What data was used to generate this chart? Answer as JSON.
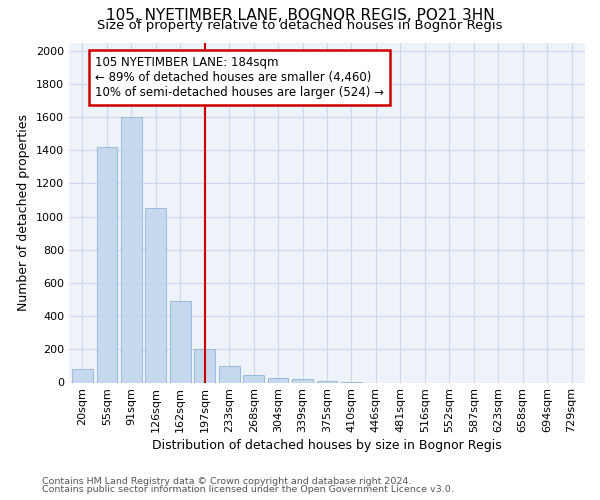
{
  "title": "105, NYETIMBER LANE, BOGNOR REGIS, PO21 3HN",
  "subtitle": "Size of property relative to detached houses in Bognor Regis",
  "xlabel": "Distribution of detached houses by size in Bognor Regis",
  "ylabel": "Number of detached properties",
  "footnote1": "Contains HM Land Registry data © Crown copyright and database right 2024.",
  "footnote2": "Contains public sector information licensed under the Open Government Licence v3.0.",
  "categories": [
    "20sqm",
    "55sqm",
    "91sqm",
    "126sqm",
    "162sqm",
    "197sqm",
    "233sqm",
    "268sqm",
    "304sqm",
    "339sqm",
    "375sqm",
    "410sqm",
    "446sqm",
    "481sqm",
    "516sqm",
    "552sqm",
    "587sqm",
    "623sqm",
    "658sqm",
    "694sqm",
    "729sqm"
  ],
  "values": [
    80,
    1420,
    1600,
    1050,
    490,
    205,
    100,
    45,
    30,
    20,
    10,
    5,
    0,
    0,
    0,
    0,
    0,
    0,
    0,
    0,
    0
  ],
  "bar_color": "#c5d8ed",
  "bar_edge_color": "#8fb4d4",
  "vline_x_index": 5,
  "vline_color": "#cc0000",
  "annotation_line1": "105 NYETIMBER LANE: 184sqm",
  "annotation_line2": "← 89% of detached houses are smaller (4,460)",
  "annotation_line3": "10% of semi-detached houses are larger (524) →",
  "annotation_box_color": "#cc0000",
  "ylim": [
    0,
    2050
  ],
  "yticks": [
    0,
    200,
    400,
    600,
    800,
    1000,
    1200,
    1400,
    1600,
    1800,
    2000
  ],
  "grid_color": "#ccd6e8",
  "bg_color": "#eef2f9",
  "title_fontsize": 11,
  "subtitle_fontsize": 9.5,
  "ylabel_fontsize": 9,
  "xlabel_fontsize": 9,
  "tick_fontsize": 8,
  "footnote_fontsize": 6.8
}
